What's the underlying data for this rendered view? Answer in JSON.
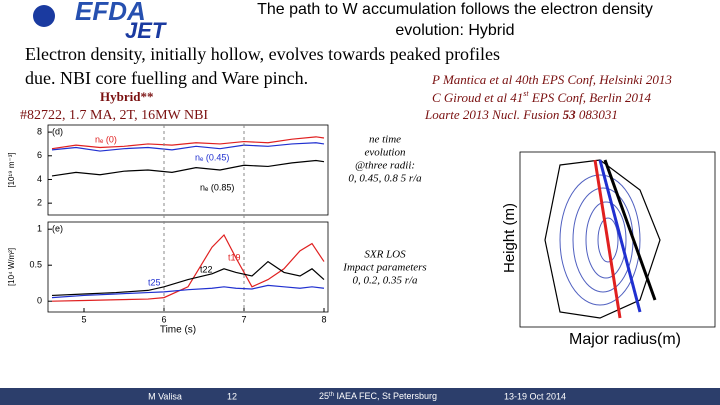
{
  "header": {
    "logo_top": "EFDA",
    "logo_bottom": "JET",
    "title_line1": "The path to W accumulation follows the electron density",
    "title_line2": "evolution: Hybrid"
  },
  "body": {
    "line1": "Electron density, initially hollow, evolves towards peaked profiles",
    "line2": "due. NBI core fuelling and Ware pinch."
  },
  "shot": {
    "scenario": "Hybrid**",
    "parameters": "#82722, 1.7 MA, 2T, 16MW NBI"
  },
  "references": [
    {
      "text": "P Mantica et al 40th EPS Conf, Helsinki 2013"
    },
    {
      "text": "C Giroud et al 41",
      "sup": "st",
      "rest": " EPS Conf, Berlin 2014"
    },
    {
      "text": "Loarte 2013 Nucl. Fusion ",
      "bold": "53",
      "rest": " 083031"
    }
  ],
  "plots": [
    {
      "type": "line",
      "panel": "(d)",
      "ylabel": "[10¹⁹ m⁻³]",
      "x": [
        4.6,
        4.9,
        5.2,
        5.5,
        5.8,
        6.1,
        6.4,
        6.7,
        7.0,
        7.3,
        7.6,
        7.9,
        8.0
      ],
      "series": [
        {
          "name": "nₑ (0)",
          "color": "#e02020",
          "values": [
            6.6,
            6.9,
            6.7,
            6.8,
            7.0,
            6.9,
            7.1,
            7.0,
            7.2,
            7.1,
            7.4,
            7.6,
            7.5
          ]
        },
        {
          "name": "nₑ (0.45)",
          "color": "#2030d0",
          "values": [
            6.5,
            6.7,
            6.4,
            6.6,
            6.7,
            6.5,
            6.8,
            6.6,
            6.9,
            6.8,
            7.0,
            7.1,
            7.0
          ]
        },
        {
          "name": "nₑ (0.85)",
          "color": "#000000",
          "values": [
            4.3,
            4.6,
            4.4,
            4.7,
            4.8,
            4.6,
            5.0,
            4.8,
            5.2,
            5.1,
            5.4,
            5.6,
            5.5
          ]
        }
      ],
      "xlim": [
        4.55,
        8.05
      ],
      "ylim": [
        1,
        8.6
      ],
      "yticks": [
        8,
        6,
        4,
        2
      ]
    },
    {
      "type": "line",
      "panel": "(e)",
      "ylabel": "[10⁴ W/m²]",
      "xlabel": "Time (s)",
      "x": [
        4.6,
        5.0,
        5.4,
        5.8,
        6.0,
        6.3,
        6.6,
        6.75,
        6.9,
        7.1,
        7.3,
        7.5,
        7.7,
        7.85,
        8.0
      ],
      "series": [
        {
          "name": "t19",
          "color": "#e02020",
          "values": [
            0.0,
            0.01,
            0.02,
            0.03,
            0.05,
            0.2,
            0.75,
            0.92,
            0.6,
            0.2,
            0.3,
            0.45,
            0.7,
            0.8,
            0.55
          ]
        },
        {
          "name": "t22",
          "color": "#000000",
          "values": [
            0.08,
            0.1,
            0.12,
            0.15,
            0.2,
            0.3,
            0.38,
            0.45,
            0.4,
            0.35,
            0.55,
            0.4,
            0.35,
            0.45,
            0.3
          ]
        },
        {
          "name": "t25",
          "color": "#2030d0",
          "values": [
            0.05,
            0.08,
            0.1,
            0.12,
            0.13,
            0.16,
            0.18,
            0.2,
            0.18,
            0.17,
            0.22,
            0.2,
            0.18,
            0.2,
            0.18
          ]
        }
      ],
      "xlim": [
        4.55,
        8.05
      ],
      "ylim": [
        -0.15,
        1.1
      ],
      "yticks": [
        1.0,
        0.5,
        0.0
      ],
      "xticks": [
        5,
        6,
        7,
        8
      ],
      "vlines": [
        6,
        7
      ]
    }
  ],
  "notes": [
    [
      "ne time",
      "evolution",
      "@three radii:",
      "0, 0.45, 0.8 5 r/a"
    ],
    [
      "SXR LOS",
      "Impact parameters",
      "0, 0.2, 0.35 r/a"
    ]
  ],
  "equilibrium": {
    "ylabel": "Height (m)",
    "xlabel": "Major radius(m)"
  },
  "footer": {
    "author": "M Valisa",
    "page": "12",
    "conference": "25",
    "conference_sup": "th",
    "conference_rest": " IAEA FEC, St Petersburg",
    "dates": "13-19 Oct 2014"
  }
}
